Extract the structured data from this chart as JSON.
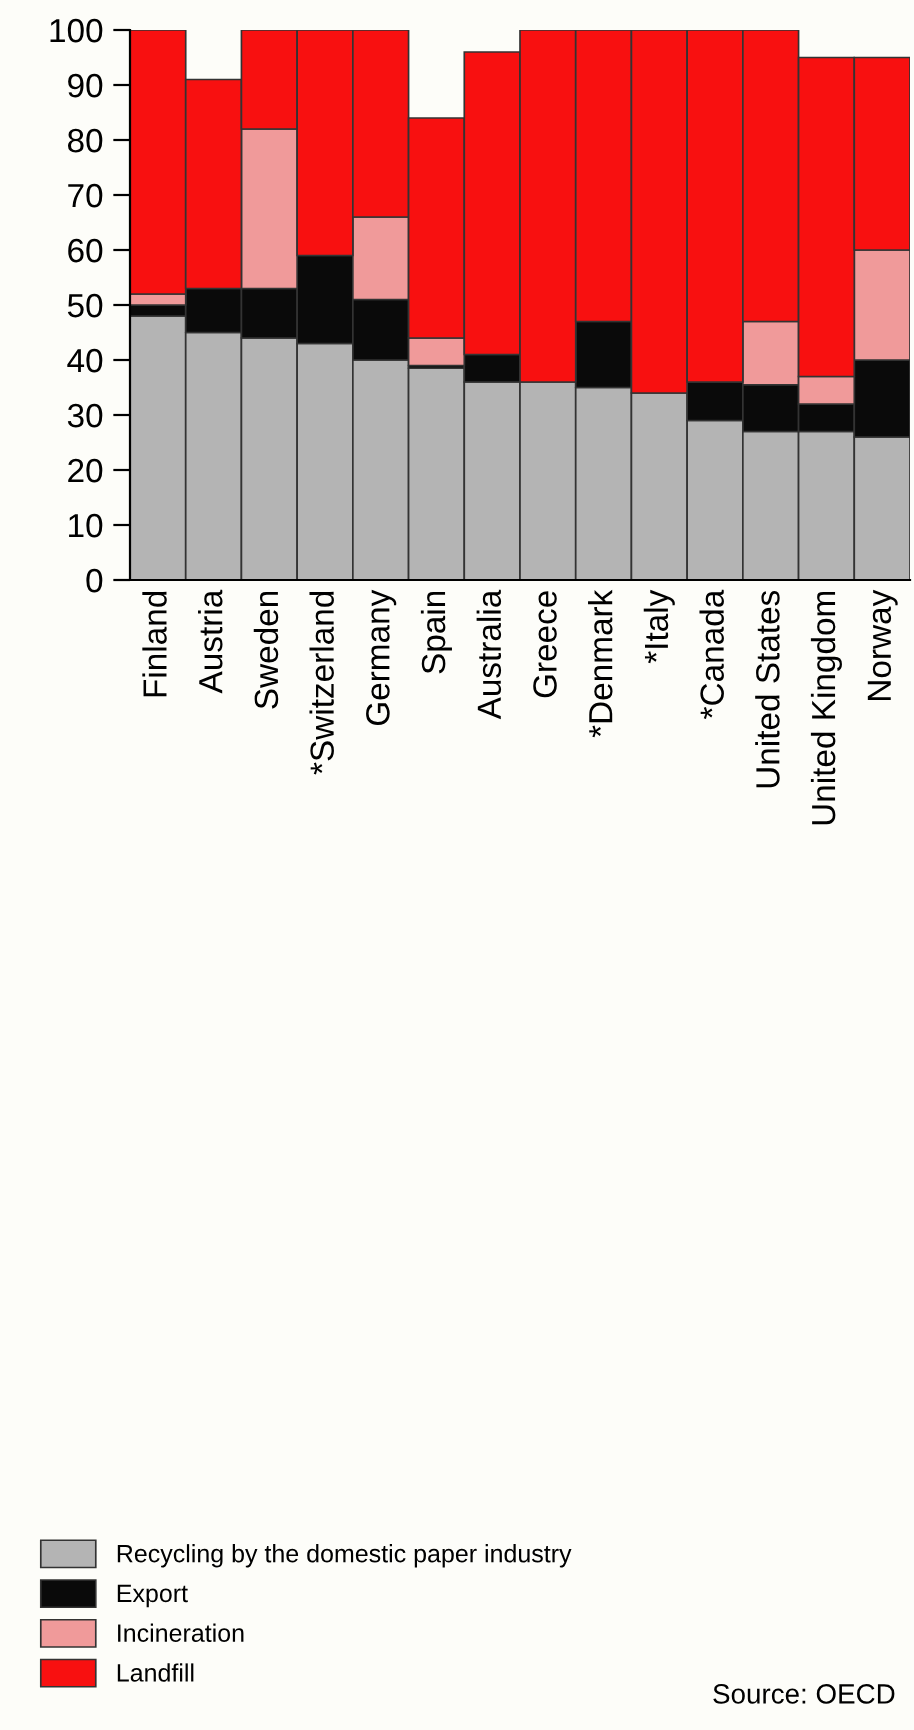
{
  "chart_data": {
    "type": "bar",
    "stacked": true,
    "categories": [
      "Finland",
      "Austria",
      "Sweden",
      "*Switzerland",
      "Germany",
      "Spain",
      "Australia",
      "Greece",
      "*Denmark",
      "*Italy",
      "*Canada",
      "United States",
      "United Kingdom",
      "Norway"
    ],
    "series": [
      {
        "name": "Recycling by the domestic paper industry",
        "color": "#b4b4b4",
        "values": [
          48,
          45,
          44,
          43,
          40,
          38.5,
          36,
          36,
          35,
          34,
          29,
          27,
          27,
          26
        ]
      },
      {
        "name": "Export",
        "color": "#0a0a0a",
        "values": [
          2,
          8,
          9,
          16,
          11,
          0.5,
          5,
          0,
          12,
          0,
          7,
          8.5,
          5,
          14
        ]
      },
      {
        "name": "Incineration",
        "color": "#f09a9a",
        "values": [
          2,
          0,
          29,
          0,
          15,
          5,
          0,
          0,
          0,
          0,
          0,
          11.5,
          5,
          20
        ]
      },
      {
        "name": "Landfill",
        "color": "#f81010",
        "values": [
          48,
          38,
          18,
          41,
          34,
          40,
          55,
          64,
          53,
          66,
          64,
          53,
          58,
          35
        ]
      }
    ],
    "ylim": [
      0,
      100
    ],
    "yticks": [
      0,
      10,
      20,
      30,
      40,
      50,
      60,
      70,
      80,
      90,
      100
    ],
    "grid": false,
    "legend": "bottom left",
    "annotations": [
      "Source: OECD"
    ]
  }
}
